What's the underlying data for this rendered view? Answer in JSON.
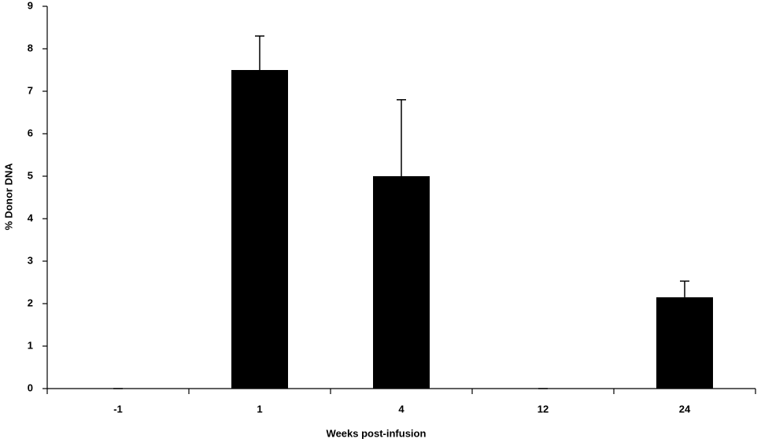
{
  "chart_data": {
    "type": "bar",
    "x_label": "Weeks post-infusion",
    "y_label": "% Donor DNA",
    "categories": [
      "-1",
      "1",
      "4",
      "12",
      "24"
    ],
    "values": [
      0,
      7.5,
      5,
      0,
      2.15
    ],
    "errors": [
      0,
      0.8,
      1.8,
      0,
      0.38
    ],
    "color": "#000000",
    "ylim": [
      0,
      9
    ],
    "yticks": [
      0,
      1,
      2,
      3,
      4,
      5,
      6,
      7,
      8,
      9
    ],
    "grid": false
  }
}
